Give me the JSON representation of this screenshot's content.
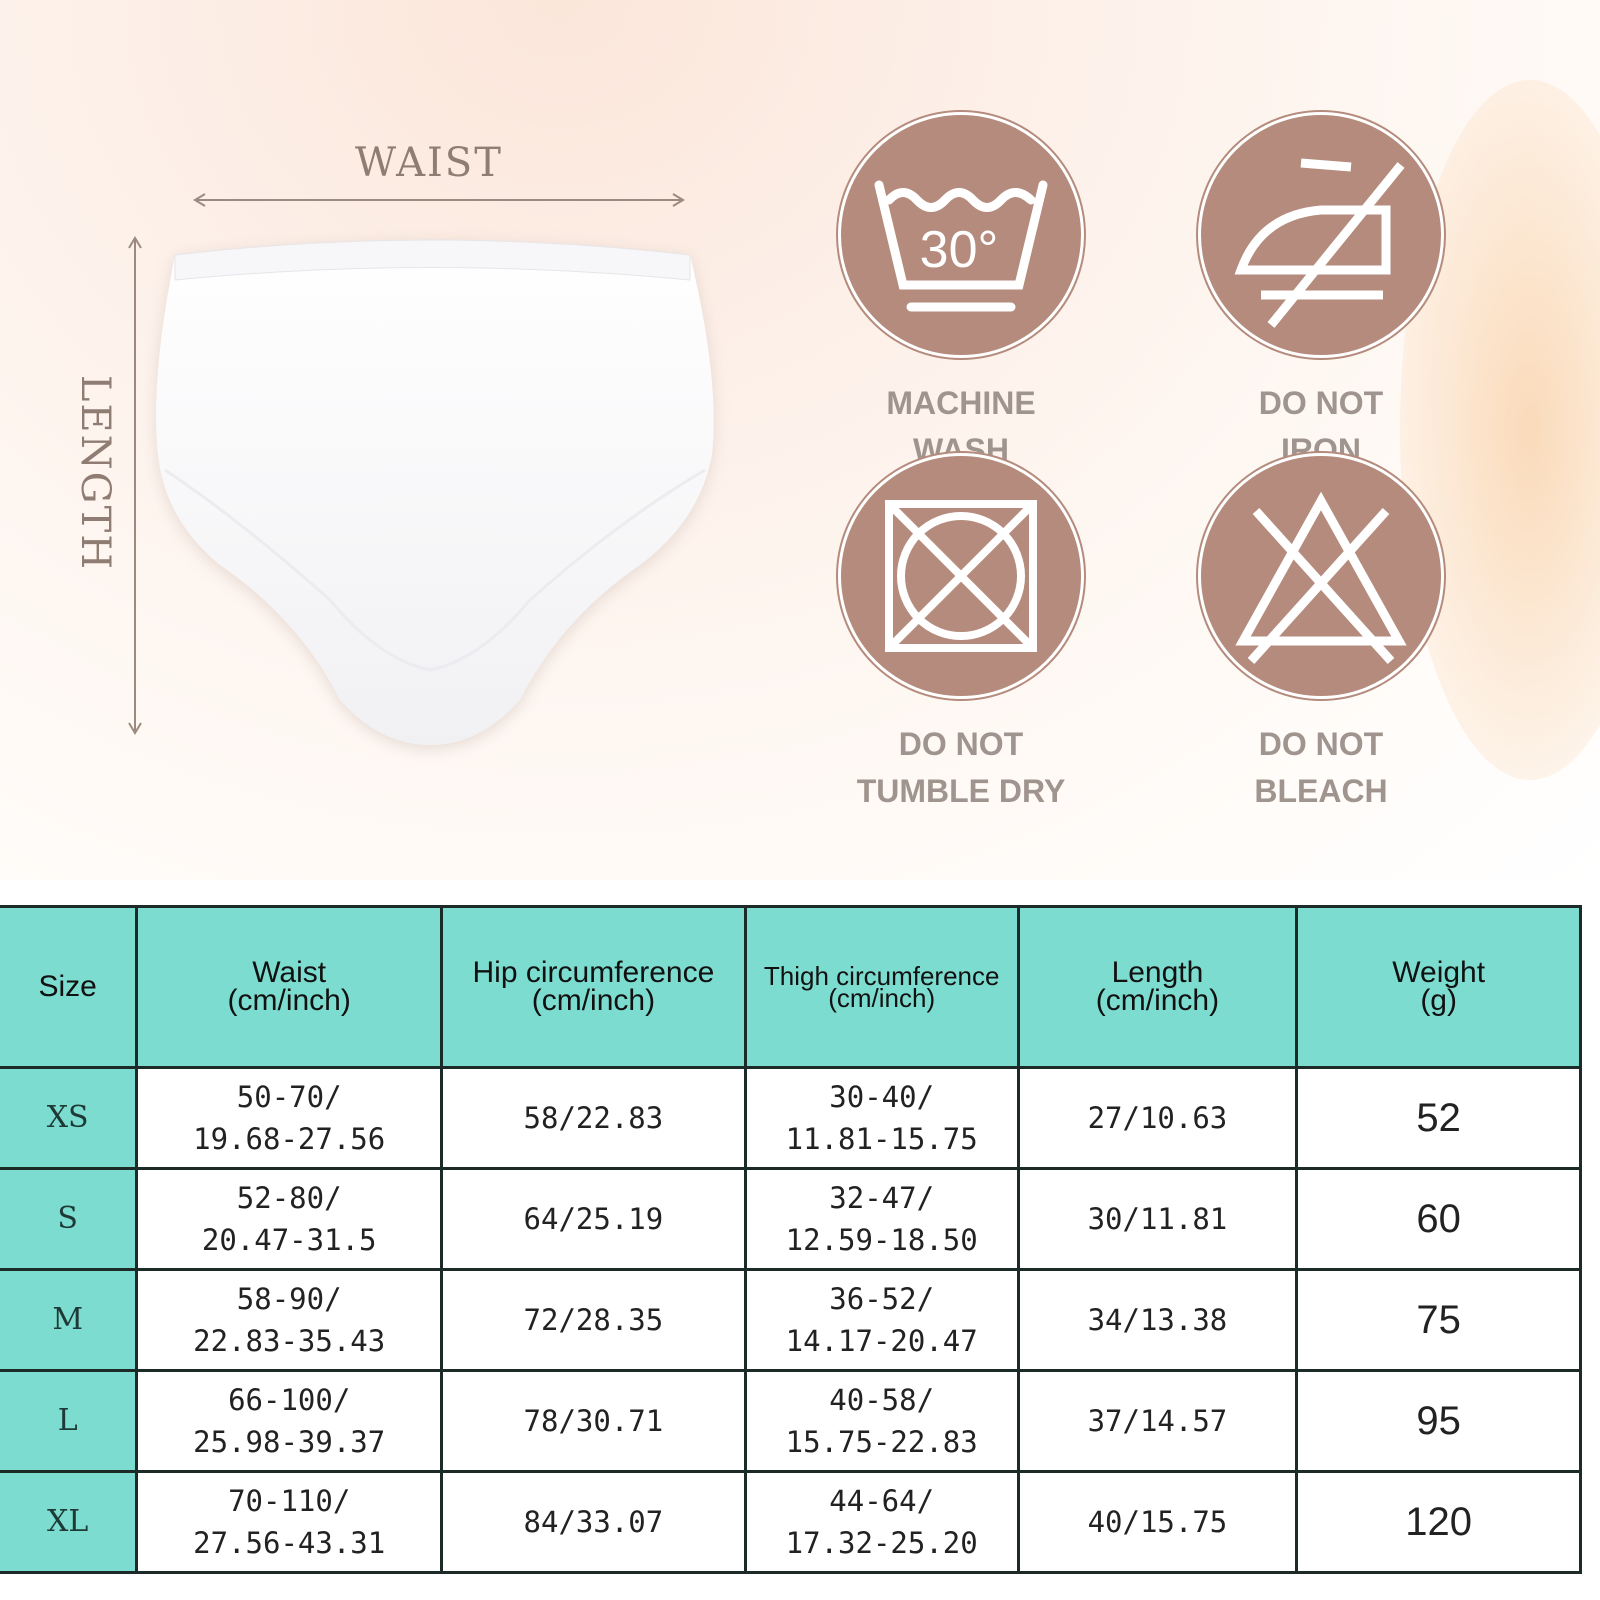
{
  "dimensions": {
    "waist_label": "WAIST",
    "length_label": "LENGTH"
  },
  "care": [
    {
      "icon": "wash-30-icon",
      "label": "MACHINE WASH\nBELOW",
      "temp": "30°"
    },
    {
      "icon": "do-not-iron-icon",
      "label": "DO NOT\nIRON"
    },
    {
      "icon": "do-not-tumble-dry-icon",
      "label": "DO NOT\nTUMBLE DRY"
    },
    {
      "icon": "do-not-bleach-icon",
      "label": "DO NOT\nBLEACH"
    }
  ],
  "colors": {
    "care_circle": "#b48b7c",
    "table_header": "#7cdccf",
    "label_text": "#a0948e"
  },
  "table": {
    "headers": [
      {
        "title": "Size",
        "sub": ""
      },
      {
        "title": "Waist",
        "sub": "(cm/inch)"
      },
      {
        "title": "Hip circumference",
        "sub": "(cm/inch)"
      },
      {
        "title": "Thigh circumference",
        "sub": "(cm/inch)"
      },
      {
        "title": "Length",
        "sub": "(cm/inch)"
      },
      {
        "title": "Weight",
        "sub": "(g)"
      }
    ],
    "rows": [
      {
        "size": "XS",
        "waist": [
          "50-70/",
          "19.68-27.56"
        ],
        "hip": "58/22.83",
        "thigh": [
          "30-40/",
          "11.81-15.75"
        ],
        "length": "27/10.63",
        "weight": "52"
      },
      {
        "size": "S",
        "waist": [
          "52-80/",
          "20.47-31.5"
        ],
        "hip": "64/25.19",
        "thigh": [
          "32-47/",
          "12.59-18.50"
        ],
        "length": "30/11.81",
        "weight": "60"
      },
      {
        "size": "M",
        "waist": [
          "58-90/",
          "22.83-35.43"
        ],
        "hip": "72/28.35",
        "thigh": [
          "36-52/",
          "14.17-20.47"
        ],
        "length": "34/13.38",
        "weight": "75"
      },
      {
        "size": "L",
        "waist": [
          "66-100/",
          "25.98-39.37"
        ],
        "hip": "78/30.71",
        "thigh": [
          "40-58/",
          "15.75-22.83"
        ],
        "length": "37/14.57",
        "weight": "95"
      },
      {
        "size": "XL",
        "waist": [
          "70-110/",
          "27.56-43.31"
        ],
        "hip": "84/33.07",
        "thigh": [
          "44-64/",
          "17.32-25.20"
        ],
        "length": "40/15.75",
        "weight": "120"
      }
    ]
  }
}
